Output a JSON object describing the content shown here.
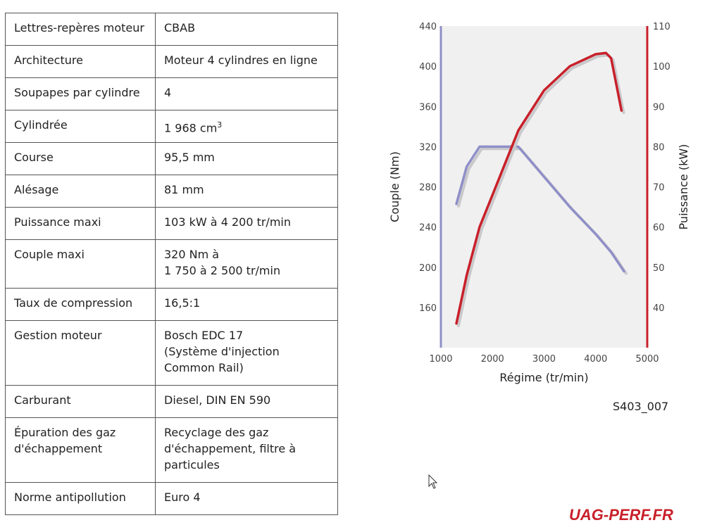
{
  "table": {
    "rows": [
      {
        "label": "Lettres-repères moteur",
        "value": "CBAB"
      },
      {
        "label": "Architecture",
        "value": "Moteur 4 cylindres en ligne"
      },
      {
        "label": "Soupapes par cylindre",
        "value": "4"
      },
      {
        "label": "Cylindrée",
        "value": "1 968 cm",
        "sup": "3"
      },
      {
        "label": "Course",
        "value": "95,5 mm"
      },
      {
        "label": "Alésage",
        "value": "81 mm"
      },
      {
        "label": "Puissance maxi",
        "value": "103 kW à 4 200 tr/min"
      },
      {
        "label": "Couple maxi",
        "value": "320 Nm à\n1 750 à 2 500 tr/min"
      },
      {
        "label": "Taux de compression",
        "value": "16,5:1"
      },
      {
        "label": "Gestion moteur",
        "value": "Bosch EDC 17\n(Système d'injection\nCommon Rail)"
      },
      {
        "label": "Carburant",
        "value": "Diesel, DIN EN 590"
      },
      {
        "label": "Épuration des gaz\nd'échappement",
        "value": "Recyclage des gaz\nd'échappement, filtre à\nparticules"
      },
      {
        "label": "Norme antipollution",
        "value": "Euro 4"
      }
    ]
  },
  "chart_data": {
    "type": "line",
    "xlabel": "Régime (tr/min)",
    "ylabel": "Couple (Nm)",
    "y2label": "Puissance (kW)",
    "xlim": [
      1000,
      5000
    ],
    "ylim": [
      120,
      440
    ],
    "y2lim": [
      30,
      110
    ],
    "xticks": [
      "1000",
      "2000",
      "3000",
      "4000",
      "5000"
    ],
    "yticks": [
      "160",
      "200",
      "240",
      "280",
      "320",
      "360",
      "400",
      "440"
    ],
    "y2ticks": [
      "40",
      "50",
      "60",
      "70",
      "80",
      "90",
      "100",
      "110"
    ],
    "series": [
      {
        "axis": "left",
        "color": "#8f8fc8",
        "x": [
          1300,
          1500,
          1750,
          2000,
          2500,
          3000,
          3500,
          4000,
          4300,
          4550
        ],
        "y": [
          263,
          300,
          320,
          320,
          320,
          290,
          260,
          233,
          215,
          196
        ]
      },
      {
        "axis": "right",
        "color": "#c8202a",
        "x": [
          1300,
          1500,
          1750,
          2000,
          2250,
          2500,
          3000,
          3500,
          4000,
          4200,
          4300,
          4500
        ],
        "y": [
          36,
          48,
          60,
          68,
          76,
          84,
          94,
          100,
          103,
          103.3,
          102,
          89
        ]
      }
    ],
    "grid": false,
    "background": "#f0f0f0",
    "figure_id": "S403_007"
  },
  "logo": {
    "text": "UAG-PERF.FR",
    "color": "#c8202a"
  }
}
